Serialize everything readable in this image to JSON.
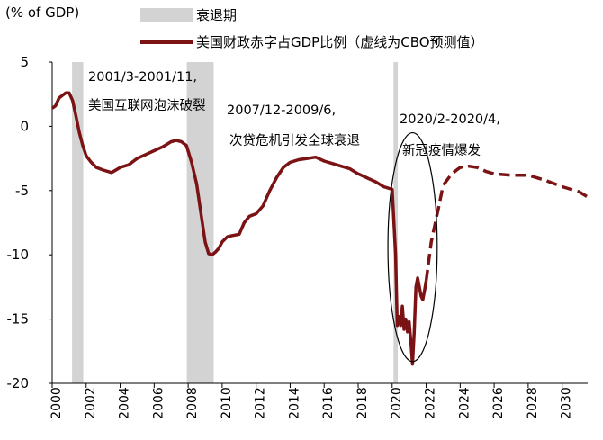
{
  "chart_data": {
    "type": "line",
    "unit_label": "(% of GDP)",
    "legend": {
      "recession_label": "衰退期",
      "series_label": "美国财政赤字占GDP比例（虚线为CBO预测值）"
    },
    "ylim": [
      -20,
      5
    ],
    "xlim": [
      2000,
      2031.5
    ],
    "yticks": [
      "5",
      "0",
      "-5",
      "-10",
      "-15",
      "-20"
    ],
    "xticks": [
      "2000",
      "2002",
      "2004",
      "2006",
      "2008",
      "2010",
      "2012",
      "2014",
      "2016",
      "2018",
      "2020",
      "2022",
      "2024",
      "2026",
      "2028",
      "2030"
    ],
    "colors": {
      "series": "#7b1214",
      "recession": "#d3d3d3"
    },
    "recessions": [
      {
        "start": 2001.17,
        "end": 2001.83
      },
      {
        "start": 2007.92,
        "end": 2009.5
      },
      {
        "start": 2020.08,
        "end": 2020.33
      }
    ],
    "series": [
      {
        "style": "solid",
        "x": [
          2000.0,
          2000.2,
          2000.4,
          2000.6,
          2000.8,
          2001.0,
          2001.2,
          2001.4,
          2001.6,
          2001.8,
          2002.0,
          2002.3,
          2002.6,
          2003.0,
          2003.5,
          2004.0,
          2004.5,
          2005.0,
          2005.5,
          2006.0,
          2006.5,
          2007.0,
          2007.3,
          2007.6,
          2007.9,
          2008.2,
          2008.5,
          2008.8,
          2009.0,
          2009.2,
          2009.4,
          2009.6,
          2009.8,
          2010.0,
          2010.3,
          2010.6,
          2011.0,
          2011.3,
          2011.6,
          2012.0,
          2012.4,
          2012.8,
          2013.2,
          2013.6,
          2014.0,
          2014.5,
          2015.0,
          2015.5,
          2016.0,
          2016.5,
          2017.0,
          2017.5,
          2018.0,
          2018.5,
          2019.0,
          2019.5,
          2020.0,
          2020.2,
          2020.3,
          2020.4,
          2020.5,
          2020.6,
          2020.7,
          2020.8,
          2020.9,
          2021.0,
          2021.1,
          2021.2,
          2021.3,
          2021.4,
          2021.5,
          2021.6,
          2021.7,
          2021.8,
          2021.9,
          2022.0
        ],
        "y": [
          1.4,
          1.6,
          2.2,
          2.4,
          2.6,
          2.6,
          2.0,
          0.8,
          -0.5,
          -1.5,
          -2.3,
          -2.8,
          -3.2,
          -3.4,
          -3.6,
          -3.2,
          -3.0,
          -2.5,
          -2.2,
          -1.9,
          -1.6,
          -1.2,
          -1.1,
          -1.2,
          -1.5,
          -2.8,
          -4.5,
          -7.2,
          -9.0,
          -9.9,
          -10.0,
          -9.8,
          -9.5,
          -9.0,
          -8.6,
          -8.5,
          -8.4,
          -7.5,
          -7.0,
          -6.8,
          -6.2,
          -5.0,
          -4.0,
          -3.2,
          -2.8,
          -2.6,
          -2.5,
          -2.4,
          -2.7,
          -2.9,
          -3.1,
          -3.3,
          -3.7,
          -4.0,
          -4.3,
          -4.7,
          -4.9,
          -10.0,
          -15.5,
          -14.8,
          -15.5,
          -14.0,
          -15.8,
          -15.0,
          -16.0,
          -15.2,
          -16.8,
          -18.5,
          -16.0,
          -12.5,
          -11.8,
          -12.5,
          -13.2,
          -13.5,
          -12.8,
          -12.0
        ]
      },
      {
        "style": "dashed",
        "x": [
          2022.0,
          2022.3,
          2022.7,
          2023.0,
          2023.5,
          2024.0,
          2024.5,
          2025.0,
          2025.5,
          2026.0,
          2027.0,
          2028.0,
          2029.0,
          2030.0,
          2031.0,
          2031.5
        ],
        "y": [
          -12.0,
          -9.0,
          -6.5,
          -4.6,
          -3.7,
          -3.2,
          -3.1,
          -3.2,
          -3.5,
          -3.7,
          -3.8,
          -3.8,
          -4.2,
          -4.7,
          -5.1,
          -5.5
        ]
      }
    ],
    "ellipse_annotation": {
      "cx": 2021.2,
      "cy": -9.4,
      "rx": 1.45,
      "ry": 8.9
    },
    "annotations": [
      {
        "lines": [
          "2001/3-2001/11,",
          "美国互联网泡沫破裂"
        ]
      },
      {
        "lines": [
          "2007/12-2009/6,",
          "次贷危机引发全球衰退"
        ]
      },
      {
        "lines": [
          "2020/2-2020/4,",
          "新冠疫情爆发"
        ]
      }
    ]
  }
}
